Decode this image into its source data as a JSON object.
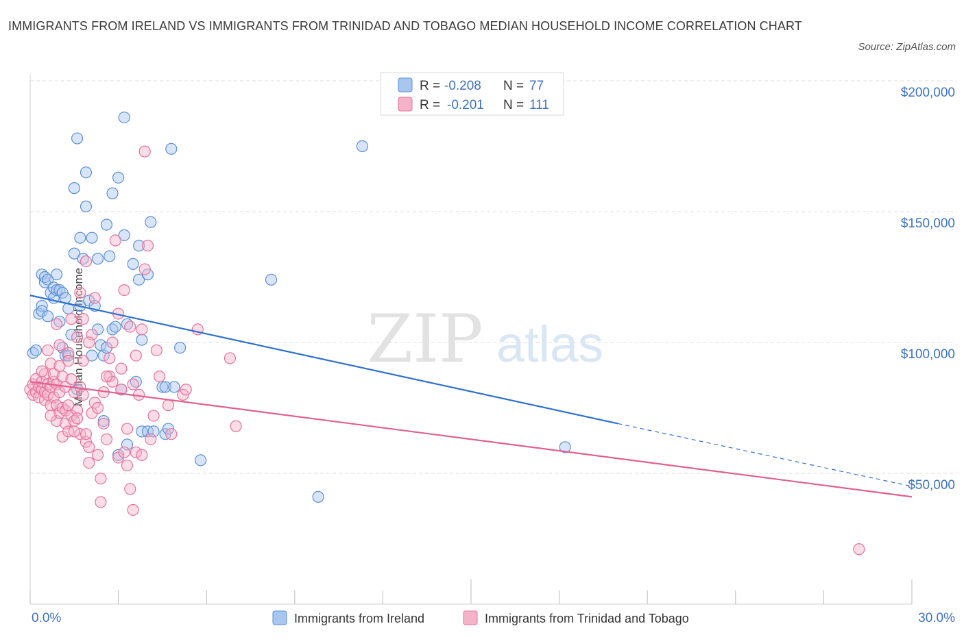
{
  "header": {
    "title": "IMMIGRANTS FROM IRELAND VS IMMIGRANTS FROM TRINIDAD AND TOBAGO MEDIAN HOUSEHOLD INCOME CORRELATION CHART",
    "source": "Source: ZipAtlas.com"
  },
  "watermark": {
    "zip": "ZIP",
    "atlas": "atlas"
  },
  "colors": {
    "blue": "#5b8fd6",
    "blue_fill": "#a9c6f0",
    "blue_line": "#2e6fd0",
    "pink": "#e8709a",
    "pink_fill": "#f5b3c9",
    "pink_line": "#e0608e",
    "axis_text": "#3d72c4",
    "grid": "#dddddd"
  },
  "legend_top": [
    {
      "r_label": "R =",
      "r_value": "-0.208",
      "n_label": "N =",
      "n_value": "77"
    },
    {
      "r_label": "R =",
      "r_value": "-0.201",
      "n_label": "N =",
      "n_value": "111"
    }
  ],
  "chart_data": {
    "type": "scatter",
    "title": "IMMIGRANTS FROM IRELAND VS IMMIGRANTS FROM TRINIDAD AND TOBAGO MEDIAN HOUSEHOLD INCOME CORRELATION CHART",
    "xlabel": "",
    "ylabel": "Median Household Income",
    "xlim": [
      0,
      30
    ],
    "ylim": [
      0,
      210000
    ],
    "x_tick_labels": [
      "0.0%",
      "30.0%"
    ],
    "y_ticks": [
      50000,
      100000,
      150000,
      200000
    ],
    "y_tick_labels": [
      "$50,000",
      "$100,000",
      "$150,000",
      "$200,000"
    ],
    "legend_position": "bottom-center",
    "series": [
      {
        "name": "Immigrants from Ireland",
        "color": "#5b8fd6",
        "trend": {
          "x0": 0,
          "y0": 118000,
          "x1": 20,
          "y1": 69000,
          "dashed_to_x": 30,
          "dashed_to_y": 45000
        },
        "points": [
          [
            0.1,
            96000
          ],
          [
            0.2,
            97000
          ],
          [
            0.3,
            111000
          ],
          [
            0.4,
            114000
          ],
          [
            0.4,
            112000
          ],
          [
            0.4,
            126000
          ],
          [
            0.5,
            123000
          ],
          [
            0.5,
            125000
          ],
          [
            0.6,
            110000
          ],
          [
            0.6,
            124000
          ],
          [
            0.7,
            119000
          ],
          [
            0.8,
            117000
          ],
          [
            0.8,
            121000
          ],
          [
            0.9,
            126000
          ],
          [
            0.9,
            120000
          ],
          [
            1.0,
            108000
          ],
          [
            1.0,
            120000
          ],
          [
            1.1,
            98000
          ],
          [
            1.1,
            119000
          ],
          [
            1.2,
            95000
          ],
          [
            1.2,
            117000
          ],
          [
            1.3,
            95000
          ],
          [
            1.3,
            113000
          ],
          [
            1.4,
            103000
          ],
          [
            1.5,
            134000
          ],
          [
            1.5,
            159000
          ],
          [
            1.6,
            178000
          ],
          [
            1.6,
            82000
          ],
          [
            1.7,
            114000
          ],
          [
            1.7,
            140000
          ],
          [
            1.8,
            132000
          ],
          [
            1.9,
            152000
          ],
          [
            1.9,
            165000
          ],
          [
            2.0,
            116000
          ],
          [
            2.1,
            95000
          ],
          [
            2.1,
            140000
          ],
          [
            2.2,
            114000
          ],
          [
            2.3,
            105000
          ],
          [
            2.3,
            132000
          ],
          [
            2.4,
            99000
          ],
          [
            2.5,
            70000
          ],
          [
            2.5,
            95000
          ],
          [
            2.6,
            98000
          ],
          [
            2.6,
            145000
          ],
          [
            2.7,
            133000
          ],
          [
            2.8,
            157000
          ],
          [
            2.8,
            105000
          ],
          [
            2.9,
            106000
          ],
          [
            3.0,
            163000
          ],
          [
            3.0,
            57000
          ],
          [
            3.1,
            82000
          ],
          [
            3.2,
            141000
          ],
          [
            3.2,
            186000
          ],
          [
            3.3,
            61000
          ],
          [
            3.3,
            107000
          ],
          [
            3.5,
            130000
          ],
          [
            3.6,
            85000
          ],
          [
            3.7,
            124000
          ],
          [
            3.7,
            137000
          ],
          [
            3.8,
            101000
          ],
          [
            3.8,
            66000
          ],
          [
            4.0,
            126000
          ],
          [
            4.0,
            66000
          ],
          [
            4.1,
            146000
          ],
          [
            4.2,
            66000
          ],
          [
            4.5,
            83000
          ],
          [
            4.6,
            65000
          ],
          [
            4.6,
            83000
          ],
          [
            4.7,
            67000
          ],
          [
            4.8,
            174000
          ],
          [
            4.9,
            83000
          ],
          [
            5.1,
            98000
          ],
          [
            5.8,
            55000
          ],
          [
            8.2,
            124000
          ],
          [
            9.8,
            41000
          ],
          [
            11.3,
            175000
          ],
          [
            18.2,
            60000
          ]
        ]
      },
      {
        "name": "Immigrants from Trinidad and Tobago",
        "color": "#e8709a",
        "trend": {
          "x0": 0,
          "y0": 85000,
          "x1": 30,
          "y1": 41000
        },
        "points": [
          [
            0.0,
            82000
          ],
          [
            0.1,
            80000
          ],
          [
            0.1,
            84000
          ],
          [
            0.2,
            81000
          ],
          [
            0.2,
            86000
          ],
          [
            0.3,
            79000
          ],
          [
            0.3,
            83000
          ],
          [
            0.4,
            82000
          ],
          [
            0.4,
            85000
          ],
          [
            0.5,
            78000
          ],
          [
            0.5,
            81000
          ],
          [
            0.5,
            88000
          ],
          [
            0.6,
            80000
          ],
          [
            0.6,
            84000
          ],
          [
            0.6,
            97000
          ],
          [
            0.7,
            76000
          ],
          [
            0.7,
            83000
          ],
          [
            0.7,
            92000
          ],
          [
            0.8,
            79000
          ],
          [
            0.8,
            85000
          ],
          [
            0.8,
            88000
          ],
          [
            0.9,
            70000
          ],
          [
            0.9,
            76000
          ],
          [
            0.9,
            84000
          ],
          [
            1.0,
            73000
          ],
          [
            1.0,
            81000
          ],
          [
            1.0,
            91000
          ],
          [
            1.1,
            64000
          ],
          [
            1.1,
            75000
          ],
          [
            1.1,
            87000
          ],
          [
            1.2,
            69000
          ],
          [
            1.2,
            74000
          ],
          [
            1.2,
            83000
          ],
          [
            1.3,
            66000
          ],
          [
            1.3,
            76000
          ],
          [
            1.3,
            96000
          ],
          [
            1.4,
            72000
          ],
          [
            1.4,
            86000
          ],
          [
            1.4,
            109000
          ],
          [
            1.5,
            81000
          ],
          [
            1.5,
            70000
          ],
          [
            1.6,
            74000
          ],
          [
            1.6,
            102000
          ],
          [
            1.7,
            65000
          ],
          [
            1.7,
            83000
          ],
          [
            1.7,
            119000
          ],
          [
            1.8,
            80000
          ],
          [
            1.8,
            93000
          ],
          [
            1.9,
            62000
          ],
          [
            1.9,
            65000
          ],
          [
            1.9,
            131000
          ],
          [
            2.0,
            54000
          ],
          [
            2.0,
            60000
          ],
          [
            2.1,
            73000
          ],
          [
            2.1,
            103000
          ],
          [
            2.2,
            77000
          ],
          [
            2.2,
            117000
          ],
          [
            2.3,
            57000
          ],
          [
            2.4,
            48000
          ],
          [
            2.4,
            39000
          ],
          [
            2.5,
            69000
          ],
          [
            2.5,
            81000
          ],
          [
            2.6,
            63000
          ],
          [
            2.7,
            87000
          ],
          [
            2.7,
            94000
          ],
          [
            2.8,
            100000
          ],
          [
            2.8,
            85000
          ],
          [
            2.9,
            139000
          ],
          [
            3.0,
            111000
          ],
          [
            3.0,
            56000
          ],
          [
            3.1,
            82000
          ],
          [
            3.2,
            120000
          ],
          [
            3.2,
            58000
          ],
          [
            3.3,
            53000
          ],
          [
            3.3,
            67000
          ],
          [
            3.4,
            44000
          ],
          [
            3.4,
            106000
          ],
          [
            3.5,
            84000
          ],
          [
            3.5,
            36000
          ],
          [
            3.6,
            58000
          ],
          [
            3.7,
            80000
          ],
          [
            3.8,
            105000
          ],
          [
            3.8,
            57000
          ],
          [
            3.9,
            173000
          ],
          [
            3.9,
            128000
          ],
          [
            4.0,
            137000
          ],
          [
            4.2,
            72000
          ],
          [
            4.3,
            97000
          ],
          [
            4.4,
            87000
          ],
          [
            4.7,
            76000
          ],
          [
            4.8,
            65000
          ],
          [
            5.2,
            80000
          ],
          [
            5.3,
            82000
          ],
          [
            5.7,
            105000
          ],
          [
            6.8,
            94000
          ],
          [
            7.0,
            68000
          ],
          [
            1.0,
            99000
          ],
          [
            0.4,
            89000
          ],
          [
            0.9,
            107000
          ],
          [
            2.6,
            87000
          ],
          [
            1.6,
            71000
          ],
          [
            1.8,
            109000
          ],
          [
            0.7,
            72000
          ],
          [
            2.0,
            100000
          ],
          [
            3.1,
            90000
          ],
          [
            3.6,
            95000
          ],
          [
            1.3,
            93000
          ],
          [
            2.3,
            75000
          ],
          [
            1.5,
            66000
          ],
          [
            4.1,
            63000
          ],
          [
            28.2,
            21000
          ]
        ]
      }
    ]
  }
}
